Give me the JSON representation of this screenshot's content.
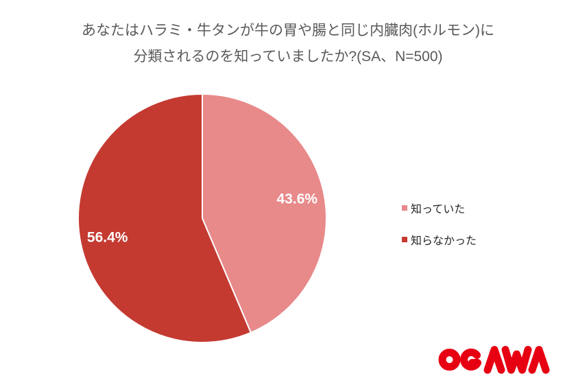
{
  "title": {
    "line1": "あなたはハラミ・牛タンが牛の胃や腸と同じ内臓肉(ホルモン)に",
    "line2": "分類されるのを知っていましたか?(SA、N=500)"
  },
  "chart_data": {
    "type": "pie",
    "title": "あなたはハラミ・牛タンが牛の胃や腸と同じ内臓肉(ホルモン)に分類されるのを知っていましたか?(SA、N=500)",
    "categories": [
      "知っていた",
      "知らなかった"
    ],
    "values": [
      43.6,
      56.4
    ],
    "unit": "%",
    "data_labels": [
      "43.6%",
      "56.4%"
    ],
    "colors": [
      "#e8898a",
      "#c43a31"
    ],
    "start_angle_deg": 0,
    "direction": "clockwise",
    "legend_position": "right",
    "sample_size": 500
  },
  "legend": {
    "items": [
      {
        "label": "知っていた",
        "color": "#e8898a"
      },
      {
        "label": "知らなかった",
        "color": "#c43a31"
      }
    ]
  },
  "logo": {
    "text": "OGAWA",
    "color": "#e60012"
  }
}
